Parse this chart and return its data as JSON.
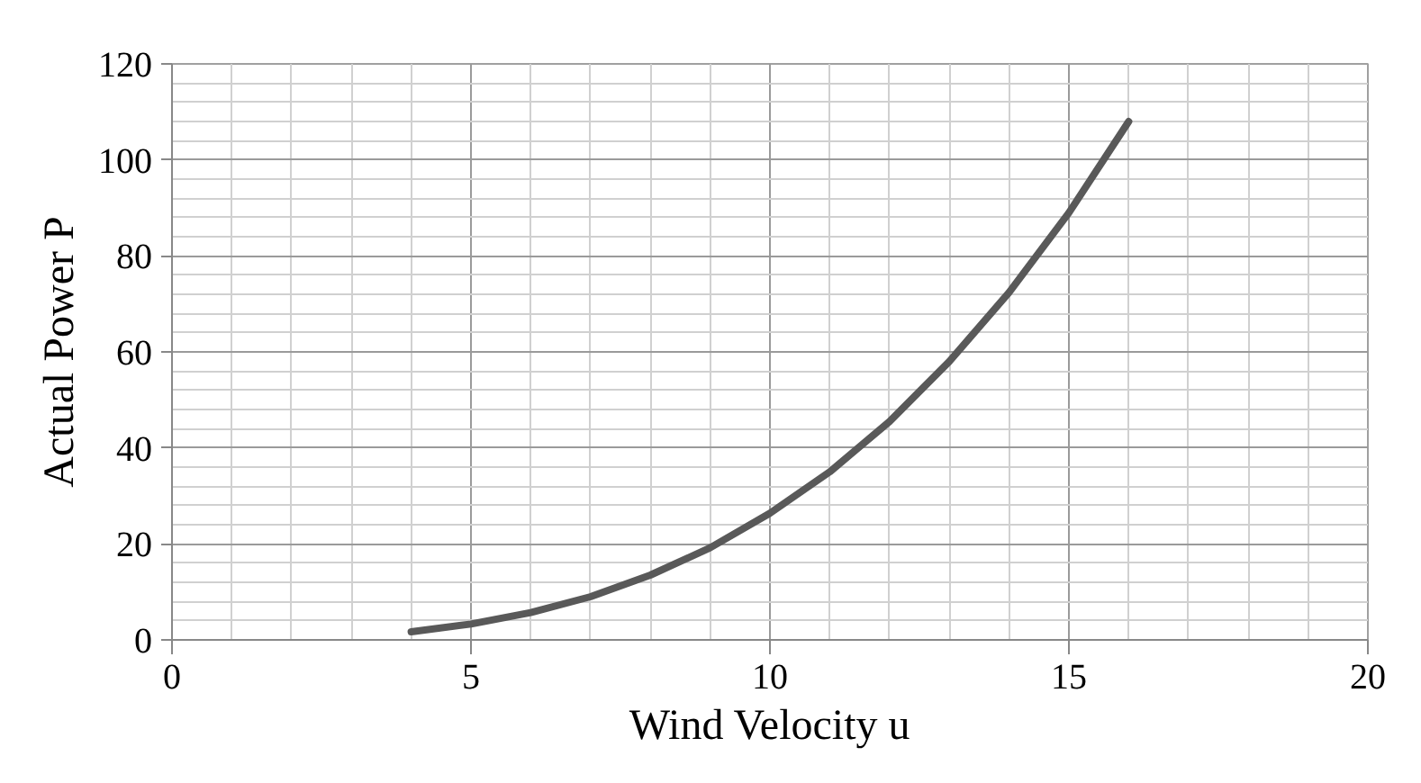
{
  "chart_data": {
    "type": "line",
    "xlabel": "Wind Velocity u",
    "ylabel": "Actual Power P",
    "x": [
      4,
      5,
      6,
      7,
      8,
      9,
      10,
      11,
      12,
      13,
      14,
      15,
      16
    ],
    "series": [
      {
        "color": "#595959",
        "values": [
          1.7,
          3.3,
          5.7,
          9,
          13.5,
          19.2,
          26.4,
          35,
          45.5,
          58,
          72.4,
          89,
          108
        ]
      }
    ],
    "xlim": [
      0,
      20
    ],
    "xticks": [
      0,
      5,
      10,
      15,
      20
    ],
    "ylim": [
      0,
      120
    ],
    "yticks": [
      0,
      20,
      40,
      60,
      80,
      100,
      120
    ],
    "grid": true,
    "marker": "none",
    "line_style": "solid"
  }
}
